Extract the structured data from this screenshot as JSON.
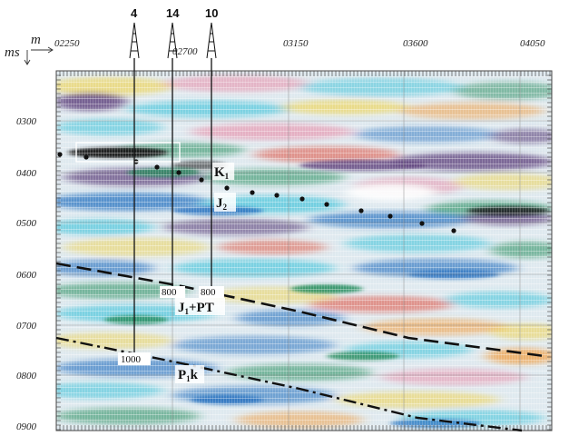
{
  "axes": {
    "x_unit": "m",
    "y_unit": "ms",
    "x_ticks": [
      "02250",
      "02700",
      "03150",
      "03600",
      "04050"
    ],
    "y_ticks": [
      "0300",
      "0400",
      "0500",
      "0600",
      "0700",
      "0800",
      "0900"
    ]
  },
  "wells": [
    {
      "label": "4",
      "depth_label": "1000"
    },
    {
      "label": "14",
      "depth_label": "800"
    },
    {
      "label": "10",
      "depth_label": "800"
    }
  ],
  "horizons": {
    "K1": {
      "main": "K",
      "sub": "1"
    },
    "J2": {
      "main": "J",
      "sub": "2"
    },
    "J1PT": {
      "main": "J",
      "sub": "1",
      "rest": "+PT"
    },
    "P1k": {
      "main": "P",
      "sub": "1",
      "rest": "k"
    }
  },
  "colors": {
    "cyan": "#39c2d8",
    "blue": "#2a73c0",
    "green": "#1f8a5a",
    "yellow": "#f0d24a",
    "orange": "#f29a38",
    "red": "#e04d3a",
    "pink": "#e98aa5",
    "purple": "#5c3f7a",
    "black": "#141414"
  }
}
